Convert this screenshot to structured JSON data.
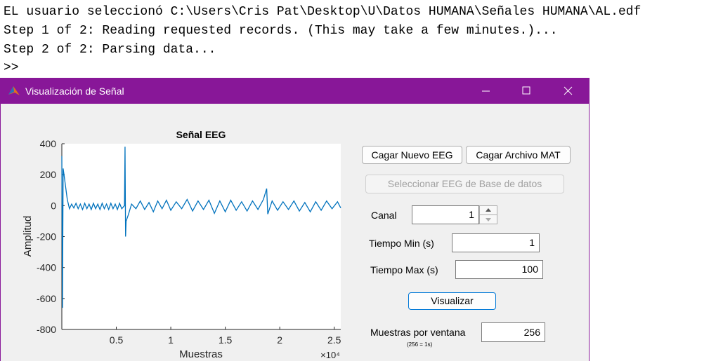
{
  "console": {
    "lines": [
      "EL usuario seleccionó C:\\Users\\Cris Pat\\Desktop\\U\\Datos HUMANA\\Señales HUMANA\\AL.edf",
      "Step 1 of 2: Reading requested records. (This may take a few minutes.)...",
      "Step 2 of 2: Parsing data...",
      ">>"
    ]
  },
  "window": {
    "title": "Visualización de Señal"
  },
  "chart_data": {
    "type": "line",
    "title": "Señal EEG",
    "x_label": "Muestras",
    "y_label": "Amplitud",
    "x_exponent_label": "×10⁴",
    "color": "#0072bd",
    "grid": false,
    "xlim": [
      0,
      25600
    ],
    "xticks": [
      {
        "value": 5000,
        "label": "0.5"
      },
      {
        "value": 10000,
        "label": "1"
      },
      {
        "value": 15000,
        "label": "1.5"
      },
      {
        "value": 20000,
        "label": "2"
      },
      {
        "value": 25000,
        "label": "2.5"
      }
    ],
    "ylim": [
      -800,
      400
    ],
    "yticks": [
      -800,
      -600,
      -400,
      -200,
      0,
      200,
      400
    ],
    "x": [
      0,
      60,
      120,
      200,
      350,
      500,
      700,
      900,
      1100,
      1300,
      1500,
      1700,
      1900,
      2100,
      2300,
      2500,
      2700,
      2900,
      3100,
      3300,
      3500,
      3700,
      3900,
      4100,
      4300,
      4500,
      4700,
      4900,
      5100,
      5300,
      5500,
      5750,
      5800,
      5850,
      5900,
      6100,
      6400,
      6800,
      7200,
      7600,
      8000,
      8400,
      8800,
      9200,
      9600,
      10000,
      10500,
      11000,
      11500,
      12000,
      12500,
      13000,
      13500,
      14000,
      14500,
      15000,
      15500,
      16000,
      16500,
      17000,
      17500,
      18000,
      18500,
      18800,
      18900,
      19300,
      19800,
      20300,
      20800,
      21300,
      21800,
      22300,
      22800,
      23300,
      23800,
      24300,
      24800,
      25300,
      25600
    ],
    "values": [
      320,
      -660,
      240,
      200,
      120,
      40,
      -20,
      10,
      -15,
      15,
      -20,
      10,
      -25,
      15,
      -20,
      10,
      -25,
      15,
      -20,
      10,
      -25,
      15,
      -20,
      10,
      -25,
      15,
      -20,
      10,
      -25,
      15,
      -20,
      0,
      380,
      -200,
      -100,
      -60,
      10,
      -20,
      30,
      -25,
      20,
      -40,
      30,
      -20,
      35,
      -30,
      25,
      -20,
      40,
      -35,
      30,
      -25,
      35,
      -50,
      30,
      -40,
      35,
      -30,
      25,
      -35,
      30,
      -25,
      40,
      110,
      -55,
      30,
      -30,
      25,
      -25,
      30,
      -35,
      20,
      -40,
      25,
      -30,
      30,
      -20,
      25,
      -15
    ]
  },
  "controls": {
    "load_eeg": "Cagar Nuevo EEG",
    "load_mat": "Cagar Archivo MAT",
    "select_db": "Seleccionar EEG de Base de datos",
    "channel_label": "Canal",
    "channel_value": "1",
    "tmin_label": "Tiempo Min (s)",
    "tmin_value": "1",
    "tmax_label": "Tiempo Max (s)",
    "tmax_value": "100",
    "visualize": "Visualizar",
    "window_label": "Muestras por ventana",
    "window_value": "256",
    "window_note": "(256 = 1s)"
  }
}
